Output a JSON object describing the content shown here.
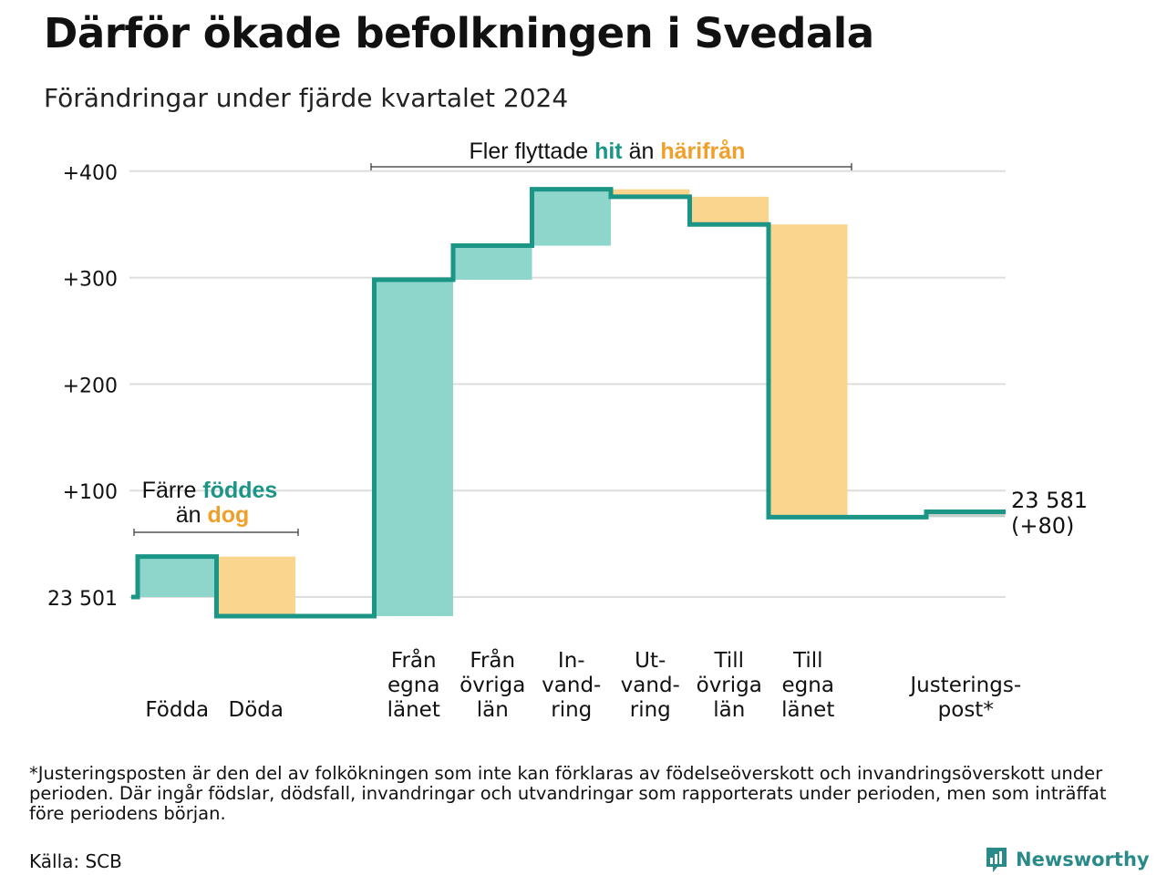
{
  "title": "Därför ökade befolkningen i Svedala",
  "subtitle": "Förändringar under fjärde kvartalet 2024",
  "colors": {
    "increase": "#8ed5cb",
    "decrease": "#fad58e",
    "adjustment": "#c2cfcb",
    "step_line": "#1a9586",
    "teal_text": "#1a9586",
    "orange_text": "#f0a02a",
    "grid": "#dddddd",
    "logo": "#2a8a8a"
  },
  "annotations": {
    "births": {
      "prefix": "Färre",
      "highlight1": "föddes",
      "middle": "än",
      "highlight2": "dog"
    },
    "migration": {
      "prefix": "Fler flyttade",
      "highlight1": "hit",
      "middle": "än",
      "highlight2": "härifrån"
    }
  },
  "end_label": {
    "total": "23 581",
    "change": "(+80)"
  },
  "chart_data": {
    "type": "waterfall",
    "start_value": 23501,
    "start_label": "23 501",
    "y_axis": {
      "ticks": [
        0,
        100,
        200,
        300,
        400
      ],
      "tick_labels": [
        "23 501",
        "+100",
        "+200",
        "+300",
        "+400"
      ],
      "range": [
        -20,
        410
      ]
    },
    "grid": true,
    "steps": [
      {
        "label": [
          "Födda"
        ],
        "change": 38,
        "kind": "increase"
      },
      {
        "label": [
          "Döda"
        ],
        "change": -56,
        "kind": "decrease"
      },
      {
        "label": [],
        "change": 0,
        "kind": "spacer"
      },
      {
        "label": [
          "Från",
          "egna",
          "länet"
        ],
        "change": 316,
        "kind": "increase"
      },
      {
        "label": [
          "Från",
          "övriga",
          "län"
        ],
        "change": 32,
        "kind": "increase"
      },
      {
        "label": [
          "In-",
          "vand-",
          "ring"
        ],
        "change": 53,
        "kind": "increase"
      },
      {
        "label": [
          "Ut-",
          "vand-",
          "ring"
        ],
        "change": -7,
        "kind": "decrease"
      },
      {
        "label": [
          "Till",
          "övriga",
          "län"
        ],
        "change": -26,
        "kind": "decrease"
      },
      {
        "label": [
          "Till",
          "egna",
          "länet"
        ],
        "change": -275,
        "kind": "decrease"
      },
      {
        "label": [],
        "change": 0,
        "kind": "spacer"
      },
      {
        "label": [
          "Justerings-",
          "post*"
        ],
        "change": 5,
        "kind": "adjustment"
      }
    ],
    "end_value": 23581,
    "net_change": 80
  },
  "footnote": "*Justeringsposten är den del av folkökningen som inte kan förklaras av födelseöverskott och invandringsöverskott under perioden. Där ingår födslar, dödsfall, invandringar och utvandringar som rapporterats under perioden, men som inträffat före periodens början.",
  "source": "Källa: SCB",
  "brand": "Newsworthy"
}
